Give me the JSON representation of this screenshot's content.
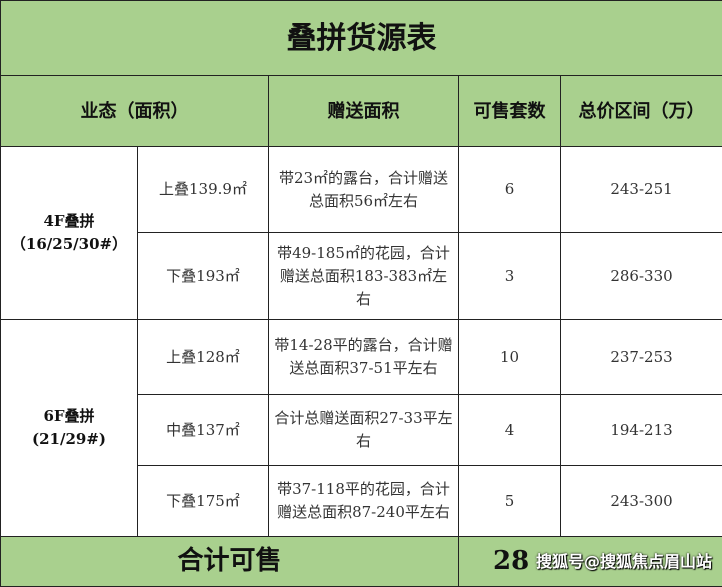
{
  "title": "叠拼货源表",
  "headers": [
    "业态（面积）",
    "赠送面积",
    "可售套数",
    "总价区间（万）"
  ],
  "groups": [
    {
      "name": "4F叠拼",
      "buildings": "（16/25/30#）",
      "rows": [
        {
          "type": "上叠139.9㎡",
          "gift": "带23㎡的露台，合计赠送总面积56㎡左右",
          "count": "6",
          "price": "243-251"
        },
        {
          "type": "下叠193㎡",
          "gift": "带49-185㎡的花园，合计赠送总面积183-383㎡左右",
          "count": "3",
          "price": "286-330"
        }
      ]
    },
    {
      "name": "6F叠拼",
      "buildings": "(21/29#)",
      "rows": [
        {
          "type": "上叠128㎡",
          "gift": "带14-28平的露台，合计赠送总面积37-51平左右",
          "count": "10",
          "price": "237-253"
        },
        {
          "type": "中叠137㎡",
          "gift": "合计总赠送面积27-33平左右",
          "count": "4",
          "price": "194-213"
        },
        {
          "type": "下叠175㎡",
          "gift": "带37-118平的花园，合计赠送总面积87-240平左右",
          "count": "5",
          "price": "243-300"
        }
      ]
    }
  ],
  "footer": {
    "label": "合计可售",
    "total": "28"
  },
  "watermark": "搜狐号@搜狐焦点眉山站",
  "colors": {
    "header_green": "#a9d08e"
  }
}
